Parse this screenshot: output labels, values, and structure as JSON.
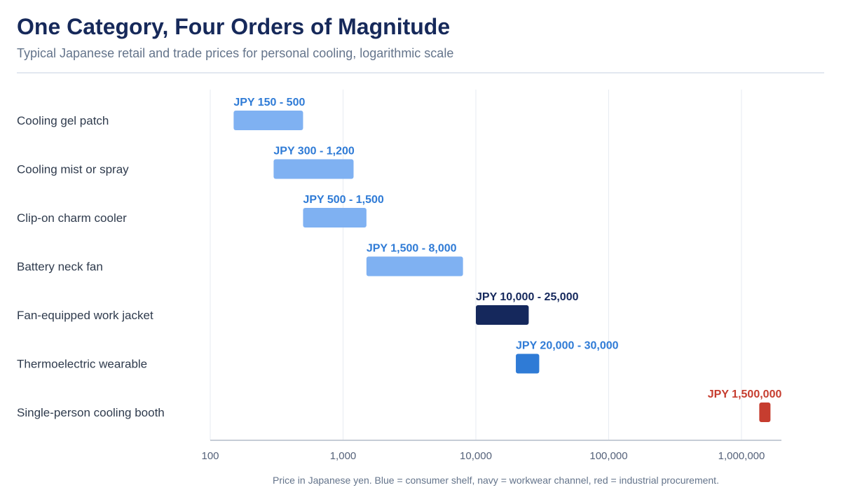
{
  "header": {
    "title": "One Category, Four Orders of Magnitude",
    "subtitle": "Typical Japanese retail and trade prices for personal cooling, logarithmic scale"
  },
  "footer": {
    "caption": "Price in Japanese yen. Blue = consumer shelf, navy = workwear channel, red = industrial procurement."
  },
  "colors": {
    "consumer_shelf": "#7fb1f2",
    "thermoelectric": "#2f7bd6",
    "workwear_channel": "#15285c",
    "industrial_procurement": "#c63d2f",
    "consumer_label": "#2f7bd6"
  },
  "chart_data": {
    "type": "bar",
    "orientation": "horizontal",
    "subtype": "range",
    "x_scale": "log",
    "xlim": [
      100,
      1500000
    ],
    "grid": true,
    "x_ticks": [
      100,
      1000,
      10000,
      100000,
      1000000
    ],
    "x_tick_labels": [
      "100",
      "1,000",
      "10,000",
      "100,000",
      "1,000,000"
    ],
    "categories": [
      "Cooling gel patch",
      "Cooling mist or spray",
      "Clip-on charm cooler",
      "Battery neck fan",
      "Fan-equipped work jacket",
      "Thermoelectric wearable",
      "Single-person cooling booth"
    ],
    "ranges": [
      {
        "low": 150,
        "high": 500,
        "label": "JPY 150 - 500",
        "channel": "consumer_shelf"
      },
      {
        "low": 300,
        "high": 1200,
        "label": "JPY 300 - 1,200",
        "channel": "consumer_shelf"
      },
      {
        "low": 500,
        "high": 1500,
        "label": "JPY 500 - 1,500",
        "channel": "consumer_shelf"
      },
      {
        "low": 1500,
        "high": 8000,
        "label": "JPY 1,500 - 8,000",
        "channel": "consumer_shelf"
      },
      {
        "low": 10000,
        "high": 25000,
        "label": "JPY 10,000 - 25,000",
        "channel": "workwear_channel"
      },
      {
        "low": 20000,
        "high": 30000,
        "label": "JPY 20,000 - 30,000",
        "channel": "thermoelectric"
      },
      {
        "low": 1500000,
        "high": 1500000,
        "label": "JPY 1,500,000",
        "channel": "industrial_procurement"
      }
    ]
  }
}
